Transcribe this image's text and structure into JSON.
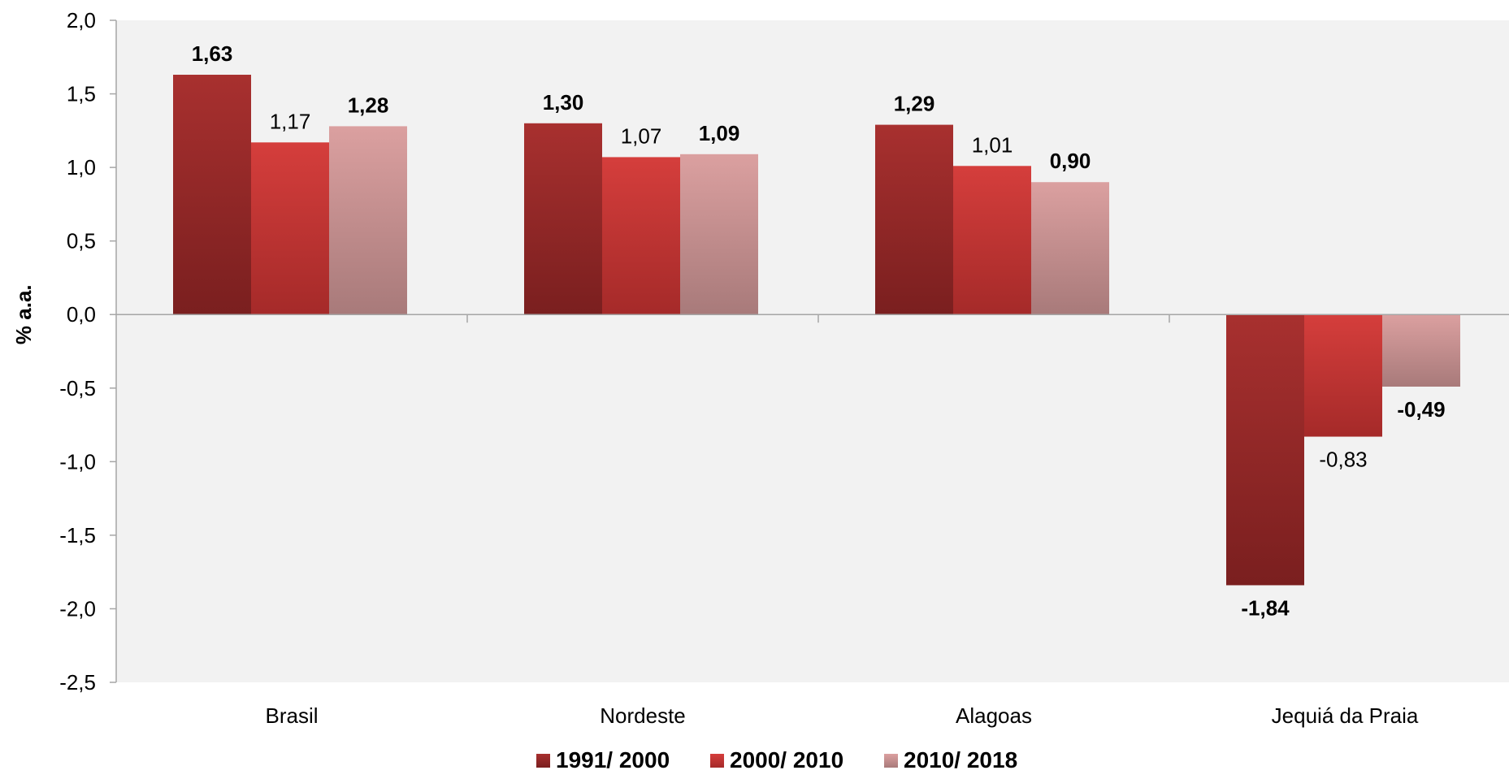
{
  "chart_data": {
    "type": "bar",
    "title": "",
    "xlabel": "",
    "ylabel": "% a.a.",
    "ylim": [
      -2.5,
      2.0
    ],
    "ytick_step": 0.5,
    "ytick_labels": [
      "2,0",
      "1,5",
      "1,0",
      "0,5",
      "0,0",
      "-0,5",
      "-1,0",
      "-1,5",
      "-2,0",
      "-2,5"
    ],
    "categories": [
      "Brasil",
      "Nordeste",
      "Alagoas",
      "Jequiá da Praia"
    ],
    "series": [
      {
        "name": "1991/ 2000",
        "values": [
          1.63,
          1.3,
          1.29,
          -1.84
        ],
        "labels": [
          "1,63",
          "1,30",
          "1,29",
          "-1,84"
        ],
        "label_bold": true,
        "color_top": "#a8302f",
        "color_bottom": "#7a1f1f"
      },
      {
        "name": "2000/ 2010",
        "values": [
          1.17,
          1.07,
          1.01,
          -0.83
        ],
        "labels": [
          "1,17",
          "1,07",
          "1,01",
          "-0,83"
        ],
        "label_bold": false,
        "color_top": "#d53e3c",
        "color_bottom": "#a52a29"
      },
      {
        "name": "2010/ 2018",
        "values": [
          1.28,
          1.09,
          0.9,
          -0.49
        ],
        "labels": [
          "1,28",
          "1,09",
          "0,90",
          "-0,49"
        ],
        "label_bold": true,
        "color_top": "#dba0a0",
        "color_bottom": "#a87a7a"
      }
    ],
    "grid": false,
    "legend_position": "bottom",
    "plot_background": "#f2f2f2"
  }
}
